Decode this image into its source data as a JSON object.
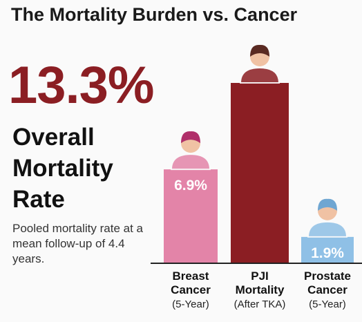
{
  "title": "The Mortality Burden vs. Cancer",
  "stat": {
    "value_label": "13.3%",
    "label": "Overall Mortality Rate",
    "note": "Pooled mortality rate at a mean follow-up of 4.4 years."
  },
  "chart_data": {
    "type": "bar",
    "categories": [
      "Breast Cancer",
      "PJI Mortality",
      "Prostate Cancer"
    ],
    "category_notes": [
      "(5-Year)",
      "(After TKA)",
      "(5-Year)"
    ],
    "values": [
      6.9,
      13.3,
      1.9
    ],
    "value_labels": [
      "6.9%",
      null,
      "1.9%"
    ],
    "colors": [
      "#e384a8",
      "#8b1e23",
      "#8fc0e6"
    ]
  }
}
